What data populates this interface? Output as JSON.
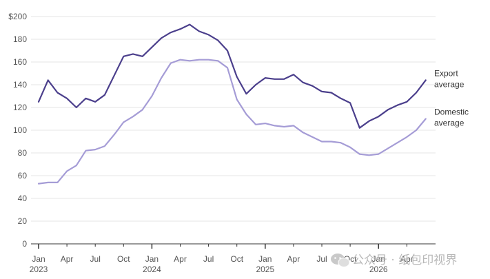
{
  "chart_data": {
    "type": "line",
    "title": "",
    "xlabel": "",
    "ylabel": "",
    "ylim": [
      0,
      200
    ],
    "y_ticks": [
      "0",
      "20",
      "40",
      "60",
      "80",
      "100",
      "120",
      "140",
      "160",
      "180",
      "$200"
    ],
    "x_ticks": [
      {
        "month": "Jan",
        "year": "2023"
      },
      {
        "month": "Apr",
        "year": ""
      },
      {
        "month": "Jul",
        "year": ""
      },
      {
        "month": "Oct",
        "year": ""
      },
      {
        "month": "Jan",
        "year": "2024"
      },
      {
        "month": "Apr",
        "year": ""
      },
      {
        "month": "Jul",
        "year": ""
      },
      {
        "month": "Oct",
        "year": ""
      },
      {
        "month": "Jan",
        "year": "2025"
      },
      {
        "month": "Apr",
        "year": ""
      },
      {
        "month": "Jul",
        "year": ""
      },
      {
        "month": "Oct",
        "year": ""
      },
      {
        "month": "Jan",
        "year": "2026"
      },
      {
        "month": "Apr",
        "year": ""
      }
    ],
    "x_start": "2023-01",
    "grid": true,
    "series": [
      {
        "name": "Export average",
        "label_lines": [
          "Export",
          "average"
        ],
        "color": "#4b3f8c",
        "values": [
          125,
          144,
          133,
          128,
          120,
          128,
          125,
          131,
          148,
          165,
          167,
          165,
          173,
          181,
          186,
          189,
          193,
          187,
          184,
          179,
          170,
          147,
          132,
          140,
          146,
          145,
          145,
          149,
          142,
          139,
          134,
          133,
          128,
          124,
          102,
          108,
          112,
          118,
          122,
          125,
          133,
          144
        ]
      },
      {
        "name": "Domestic average",
        "label_lines": [
          "Domestic",
          "average"
        ],
        "color": "#a59cd6",
        "values": [
          53,
          54,
          54,
          64,
          69,
          82,
          83,
          86,
          96,
          107,
          112,
          118,
          130,
          146,
          159,
          162,
          161,
          162,
          162,
          161,
          155,
          127,
          114,
          105,
          106,
          104,
          103,
          104,
          98,
          94,
          90,
          90,
          89,
          85,
          79,
          78,
          79,
          84,
          89,
          94,
          100,
          110
        ]
      }
    ]
  },
  "watermark": {
    "icon": "wechat-icon",
    "text": "公众号 · 纸包印视界"
  }
}
